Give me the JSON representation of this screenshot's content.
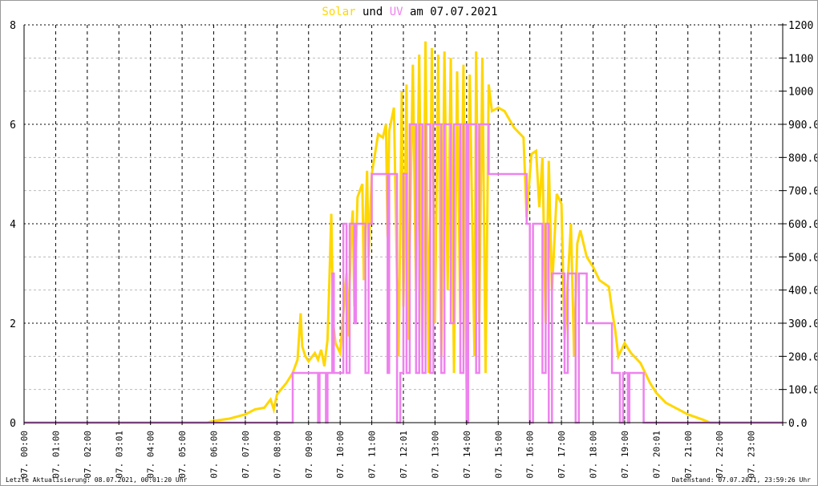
{
  "chart_data": {
    "type": "line",
    "title": {
      "part1": "Solar",
      "part2": " und ",
      "part3": "UV",
      "part4": " am 07.07.2021"
    },
    "colors": {
      "solar": "#FFD700",
      "uv": "#EE82EE",
      "grid_major": "#000000",
      "grid_minor": "#BBBBBB"
    },
    "x_unit": "hour",
    "xlim": [
      0,
      24
    ],
    "x_tick_hours": [
      0,
      1,
      2,
      3,
      4,
      5,
      6,
      7,
      8,
      9,
      10,
      11,
      12,
      13,
      14,
      15,
      16,
      17,
      18,
      19,
      20,
      21,
      22,
      23
    ],
    "x_tick_labels": [
      "07. 00:00",
      "07. 01:00",
      "07. 02:00",
      "07. 03:01",
      "07. 04:00",
      "07. 05:00",
      "07. 06:00",
      "07. 07:00",
      "07. 08:00",
      "07. 09:00",
      "07. 10:00",
      "07. 11:00",
      "07. 12:01",
      "07. 13:00",
      "07. 14:00",
      "07. 15:00",
      "07. 16:00",
      "07. 17:00",
      "07. 18:00",
      "07. 19:00",
      "07. 20:01",
      "07. 21:00",
      "07. 22:00",
      "07. 23:00"
    ],
    "y_left": {
      "lim": [
        0,
        8
      ],
      "ticks": [
        0,
        2,
        4,
        6,
        8
      ],
      "tick_labels": [
        "0",
        "2",
        "4",
        "6",
        "8"
      ]
    },
    "y_right": {
      "lim": [
        0,
        1200
      ],
      "ticks": [
        0,
        100,
        200,
        300,
        400,
        500,
        600,
        700,
        800,
        900,
        1000,
        1100,
        1200
      ],
      "tick_labels": [
        "0.0",
        "100.0",
        "200.0",
        "300.0",
        "400.0",
        "500.0",
        "600.0",
        "700.0",
        "800.0",
        "900.0",
        "1000",
        "1100",
        "1200"
      ]
    },
    "series": [
      {
        "name": "Solar",
        "axis": "right",
        "step": false,
        "points": [
          [
            0,
            0
          ],
          [
            5.8,
            0
          ],
          [
            6.0,
            5
          ],
          [
            6.5,
            12
          ],
          [
            7.0,
            25
          ],
          [
            7.3,
            40
          ],
          [
            7.6,
            45
          ],
          [
            7.8,
            70
          ],
          [
            7.9,
            40
          ],
          [
            8.0,
            85
          ],
          [
            8.3,
            120
          ],
          [
            8.5,
            150
          ],
          [
            8.65,
            190
          ],
          [
            8.75,
            330
          ],
          [
            8.8,
            230
          ],
          [
            8.9,
            200
          ],
          [
            9.0,
            185
          ],
          [
            9.2,
            210
          ],
          [
            9.3,
            190
          ],
          [
            9.4,
            220
          ],
          [
            9.5,
            170
          ],
          [
            9.6,
            250
          ],
          [
            9.65,
            400
          ],
          [
            9.72,
            630
          ],
          [
            9.78,
            300
          ],
          [
            9.85,
            240
          ],
          [
            10.0,
            210
          ],
          [
            10.1,
            330
          ],
          [
            10.2,
            450
          ],
          [
            10.25,
            260
          ],
          [
            10.35,
            580
          ],
          [
            10.4,
            640
          ],
          [
            10.45,
            350
          ],
          [
            10.55,
            680
          ],
          [
            10.7,
            720
          ],
          [
            10.75,
            430
          ],
          [
            10.85,
            760
          ],
          [
            10.9,
            500
          ],
          [
            11.0,
            750
          ],
          [
            11.2,
            870
          ],
          [
            11.35,
            860
          ],
          [
            11.45,
            900
          ],
          [
            11.5,
            560
          ],
          [
            11.55,
            880
          ],
          [
            11.7,
            950
          ],
          [
            11.8,
            430
          ],
          [
            11.85,
            200
          ],
          [
            11.95,
            1000
          ],
          [
            12.0,
            350
          ],
          [
            12.1,
            1020
          ],
          [
            12.15,
            250
          ],
          [
            12.3,
            1080
          ],
          [
            12.4,
            400
          ],
          [
            12.5,
            1110
          ],
          [
            12.6,
            200
          ],
          [
            12.7,
            1150
          ],
          [
            12.8,
            150
          ],
          [
            12.9,
            1130
          ],
          [
            13.0,
            300
          ],
          [
            13.1,
            1110
          ],
          [
            13.2,
            200
          ],
          [
            13.3,
            1120
          ],
          [
            13.4,
            400
          ],
          [
            13.5,
            1100
          ],
          [
            13.6,
            150
          ],
          [
            13.7,
            1060
          ],
          [
            13.8,
            300
          ],
          [
            13.9,
            1080
          ],
          [
            14.0,
            100
          ],
          [
            14.1,
            1050
          ],
          [
            14.25,
            200
          ],
          [
            14.3,
            1120
          ],
          [
            14.4,
            300
          ],
          [
            14.5,
            1100
          ],
          [
            14.6,
            150
          ],
          [
            14.7,
            1020
          ],
          [
            14.8,
            940
          ],
          [
            15.0,
            950
          ],
          [
            15.2,
            940
          ],
          [
            15.5,
            890
          ],
          [
            15.8,
            860
          ],
          [
            15.9,
            620
          ],
          [
            16.05,
            810
          ],
          [
            16.2,
            820
          ],
          [
            16.3,
            650
          ],
          [
            16.4,
            800
          ],
          [
            16.5,
            300
          ],
          [
            16.6,
            790
          ],
          [
            16.7,
            400
          ],
          [
            16.85,
            690
          ],
          [
            17.0,
            660
          ],
          [
            17.1,
            250
          ],
          [
            17.3,
            600
          ],
          [
            17.4,
            200
          ],
          [
            17.5,
            540
          ],
          [
            17.6,
            580
          ],
          [
            17.8,
            500
          ],
          [
            18.0,
            470
          ],
          [
            18.2,
            430
          ],
          [
            18.5,
            410
          ],
          [
            18.6,
            340
          ],
          [
            18.7,
            280
          ],
          [
            18.8,
            200
          ],
          [
            19.0,
            240
          ],
          [
            19.2,
            210
          ],
          [
            19.5,
            180
          ],
          [
            19.8,
            120
          ],
          [
            20.0,
            90
          ],
          [
            20.3,
            60
          ],
          [
            20.6,
            45
          ],
          [
            21.0,
            25
          ],
          [
            21.5,
            8
          ],
          [
            21.7,
            0
          ],
          [
            24,
            0
          ]
        ]
      },
      {
        "name": "UV",
        "axis": "left",
        "step": true,
        "points": [
          [
            0,
            0
          ],
          [
            8.5,
            1
          ],
          [
            9.3,
            0
          ],
          [
            9.35,
            1
          ],
          [
            9.55,
            0
          ],
          [
            9.6,
            1
          ],
          [
            9.75,
            3
          ],
          [
            9.8,
            1
          ],
          [
            10.1,
            4
          ],
          [
            10.2,
            1
          ],
          [
            10.3,
            4
          ],
          [
            10.45,
            2
          ],
          [
            10.5,
            4
          ],
          [
            10.8,
            1
          ],
          [
            10.9,
            4
          ],
          [
            11.0,
            5
          ],
          [
            11.5,
            1
          ],
          [
            11.55,
            5
          ],
          [
            11.8,
            0
          ],
          [
            11.9,
            1
          ],
          [
            12.0,
            5
          ],
          [
            12.1,
            1
          ],
          [
            12.2,
            6
          ],
          [
            12.4,
            1
          ],
          [
            12.5,
            6
          ],
          [
            12.6,
            1
          ],
          [
            12.7,
            6
          ],
          [
            12.85,
            1
          ],
          [
            12.95,
            6
          ],
          [
            13.2,
            1
          ],
          [
            13.3,
            6
          ],
          [
            13.5,
            2
          ],
          [
            13.6,
            6
          ],
          [
            13.8,
            1
          ],
          [
            13.9,
            6
          ],
          [
            14.0,
            0
          ],
          [
            14.05,
            6
          ],
          [
            14.3,
            1
          ],
          [
            14.4,
            6
          ],
          [
            14.7,
            5
          ],
          [
            15.9,
            4
          ],
          [
            16.0,
            0
          ],
          [
            16.1,
            4
          ],
          [
            16.4,
            1
          ],
          [
            16.5,
            4
          ],
          [
            16.6,
            0
          ],
          [
            16.7,
            3
          ],
          [
            17.1,
            1
          ],
          [
            17.2,
            3
          ],
          [
            17.45,
            0
          ],
          [
            17.55,
            3
          ],
          [
            17.8,
            2
          ],
          [
            18.6,
            1
          ],
          [
            18.85,
            0
          ],
          [
            18.95,
            1
          ],
          [
            19.1,
            0
          ],
          [
            19.15,
            1
          ],
          [
            19.6,
            0
          ],
          [
            24,
            0
          ]
        ]
      }
    ]
  },
  "footer": {
    "left": "Letzte Aktualisierung: 08.07.2021, 00:01:20 Uhr",
    "right": "Datenstand: 07.07.2021, 23:59:26 Uhr"
  }
}
